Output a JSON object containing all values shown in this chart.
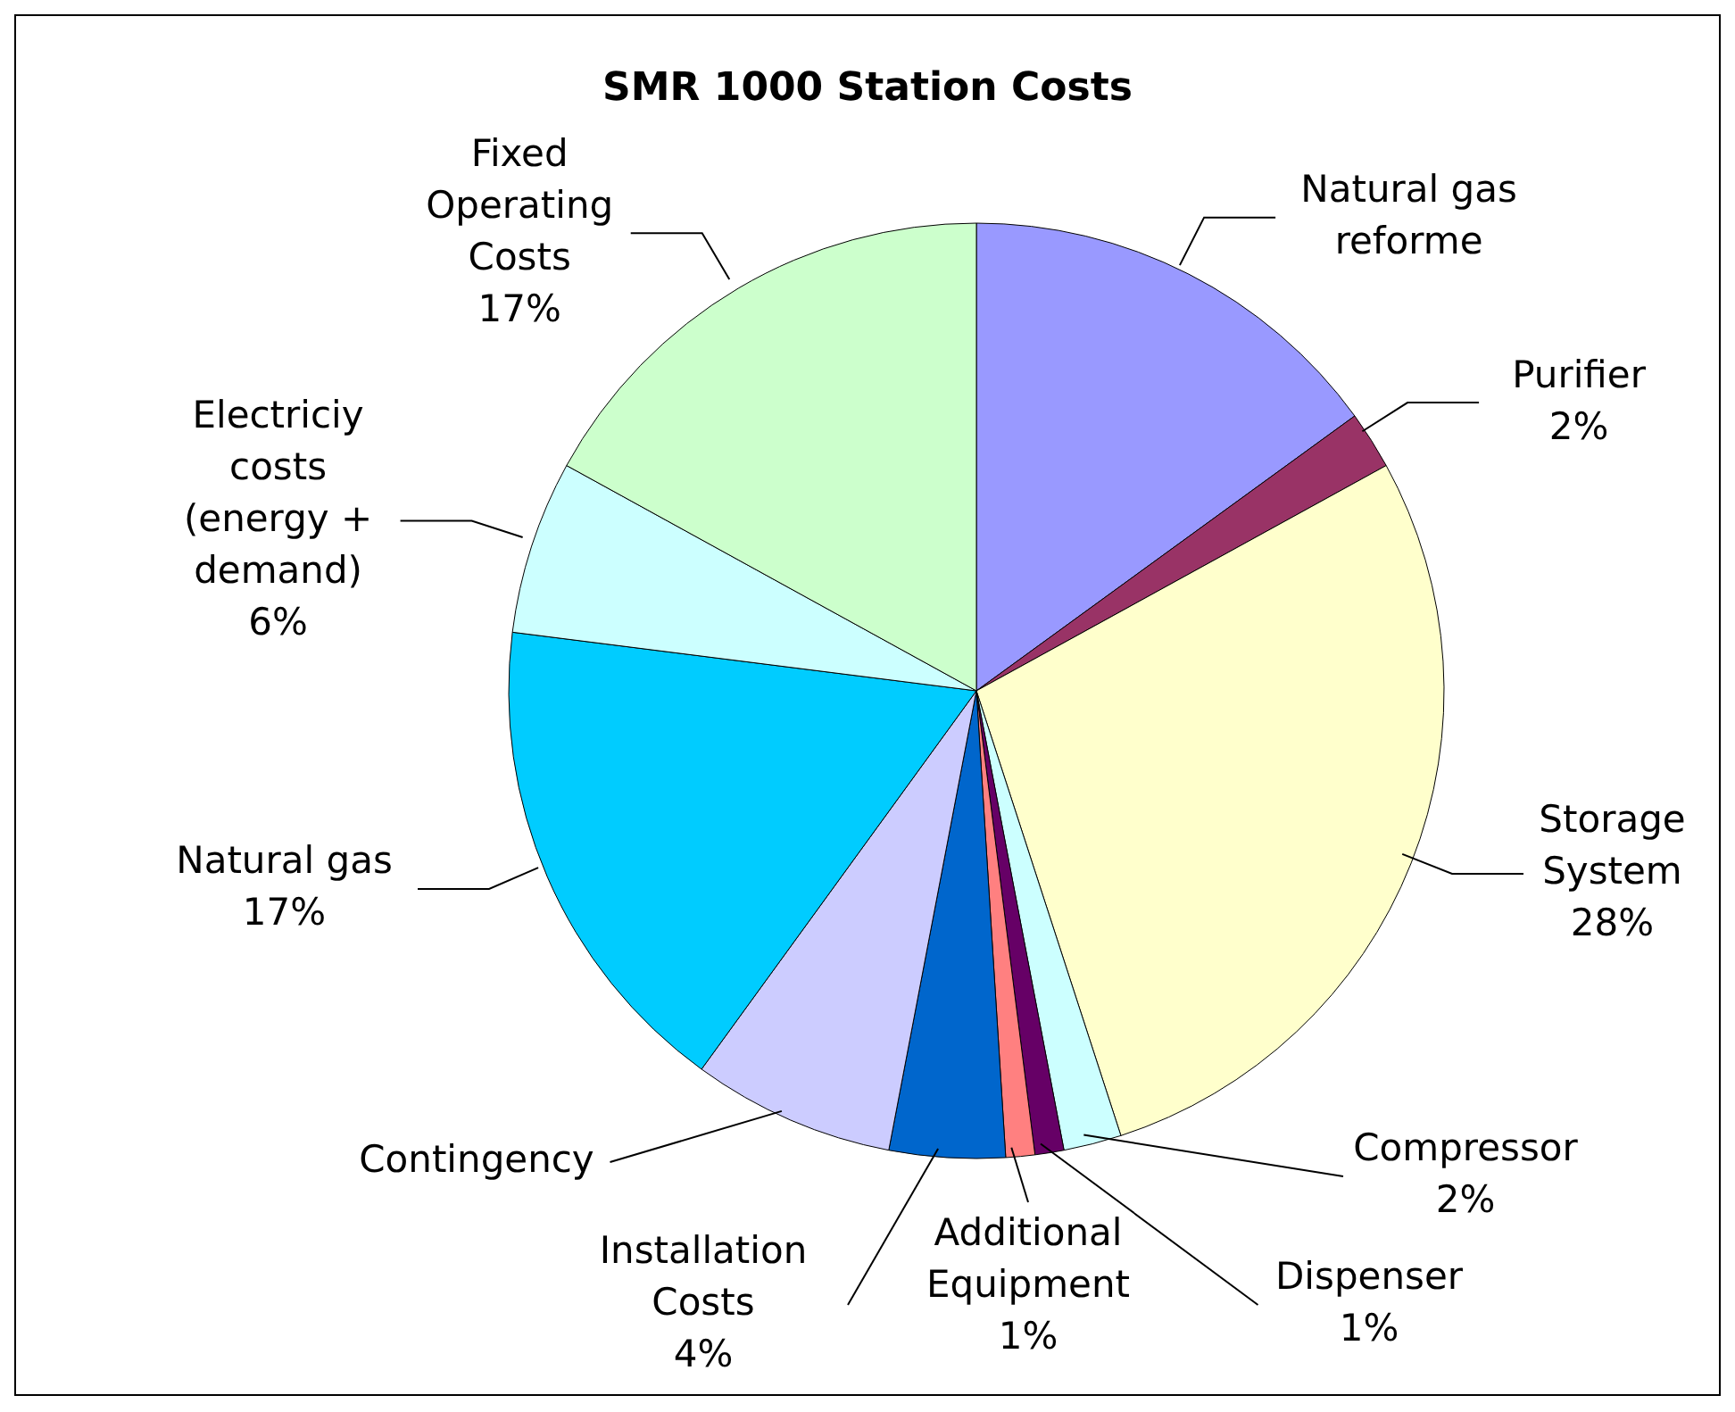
{
  "chart_data": {
    "type": "pie",
    "title": "SMR 1000 Station Costs",
    "categories": [
      "Natural gas reforme",
      "Purifier",
      "Storage System",
      "Compressor",
      "Dispenser",
      "Additional Equipment",
      "Installation Costs",
      "Contingency",
      "Natural gas",
      "Electriciy costs (energy + demand)",
      "Fixed Operating Costs"
    ],
    "values": [
      15,
      2,
      28,
      2,
      1,
      1,
      4,
      7,
      17,
      6,
      17
    ],
    "colors": [
      "#9999ff",
      "#993366",
      "#ffffcc",
      "#ccffff",
      "#660066",
      "#ff8080",
      "#0066cc",
      "#ccccff",
      "#00ccff",
      "#ccffff",
      "#ccffcc"
    ],
    "value_labels": [
      null,
      "2%",
      "28%",
      "2%",
      "1%",
      "1%",
      "4%",
      null,
      "17%",
      "6%",
      "17%"
    ]
  }
}
